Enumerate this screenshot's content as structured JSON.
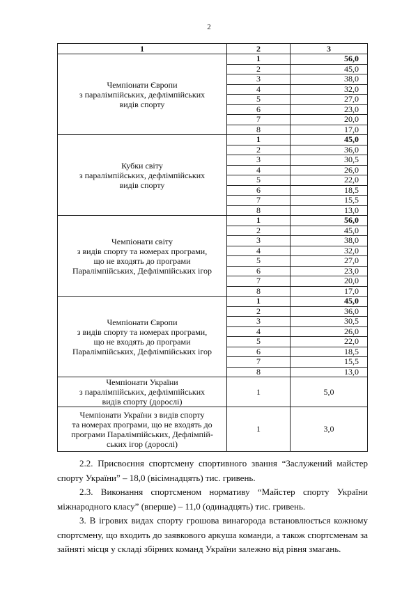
{
  "page_number": "2",
  "table": {
    "headers": [
      "1",
      "2",
      "3"
    ],
    "groups": [
      {
        "lines": [
          "Чемпіонати Європи",
          "з паралімпійських,   дефлімпійських",
          "видів спорту"
        ],
        "rows": [
          [
            "1",
            "56,0"
          ],
          [
            "2",
            "45,0"
          ],
          [
            "3",
            "38,0"
          ],
          [
            "4",
            "32,0"
          ],
          [
            "5",
            "27,0"
          ],
          [
            "6",
            "23,0"
          ],
          [
            "7",
            "20,0"
          ],
          [
            "8",
            "17,0"
          ]
        ]
      },
      {
        "lines": [
          "Кубки світу",
          "з паралімпійських,   дефлімпійських",
          "видів спорту"
        ],
        "rows": [
          [
            "1",
            "45,0"
          ],
          [
            "2",
            "36,0"
          ],
          [
            "3",
            "30,5"
          ],
          [
            "4",
            "26,0"
          ],
          [
            "5",
            "22,0"
          ],
          [
            "6",
            "18,5"
          ],
          [
            "7",
            "15,5"
          ],
          [
            "8",
            "13,0"
          ]
        ]
      },
      {
        "lines": [
          "Чемпіонати світу",
          "з видів спорту та номерах програми,",
          "що не входять до програми",
          "Паралімпійських,   Дефлімпійських ігор"
        ],
        "rows": [
          [
            "1",
            "56,0"
          ],
          [
            "2",
            "45,0"
          ],
          [
            "3",
            "38,0"
          ],
          [
            "4",
            "32,0"
          ],
          [
            "5",
            "27,0"
          ],
          [
            "6",
            "23,0"
          ],
          [
            "7",
            "20,0"
          ],
          [
            "8",
            "17,0"
          ]
        ]
      },
      {
        "lines": [
          "Чемпіонати Європи",
          "з видів спорту та номерах програми,",
          "що не входять до програми",
          "Паралімпійських,   Дефлімпійських ігор"
        ],
        "rows": [
          [
            "1",
            "45,0"
          ],
          [
            "2",
            "36,0"
          ],
          [
            "3",
            "30,5"
          ],
          [
            "4",
            "26,0"
          ],
          [
            "5",
            "22,0"
          ],
          [
            "6",
            "18,5"
          ],
          [
            "7",
            "15,5"
          ],
          [
            "8",
            "13,0"
          ]
        ]
      },
      {
        "lines": [
          "Чемпіонати України",
          "з паралімпійських, дефлімпійських",
          "видів спорту (дорослі)"
        ],
        "rows": [
          [
            "1",
            "5,0"
          ]
        ]
      },
      {
        "lines": [
          "Чемпіонати України з видів спорту",
          "та номерах програми, що не входять до",
          "програми Паралімпійських,   Дефлімпій-",
          "ських ігор (дорослі)"
        ],
        "rows": [
          [
            "1",
            "3,0"
          ]
        ]
      }
    ]
  },
  "paragraphs": [
    "2.2. Присвоєння спортсмену спортивного звання “Заслужений майстер спорту України” – 18,0  (вісімнадцять) тис. гривень.",
    "2.3. Виконання спортсменом нормативу “Майстер спорту України міжнародного класу” (вперше) – 11,0 (одинадцять) тис. гривень.",
    "3. В ігрових видах спорту грошова винагорода встановлюється кожному спортсмену, що входить до заявкового аркуша команди, а також спортсменам за зайняті місця у складі збірних команд України  залежно від рівня змагань."
  ]
}
